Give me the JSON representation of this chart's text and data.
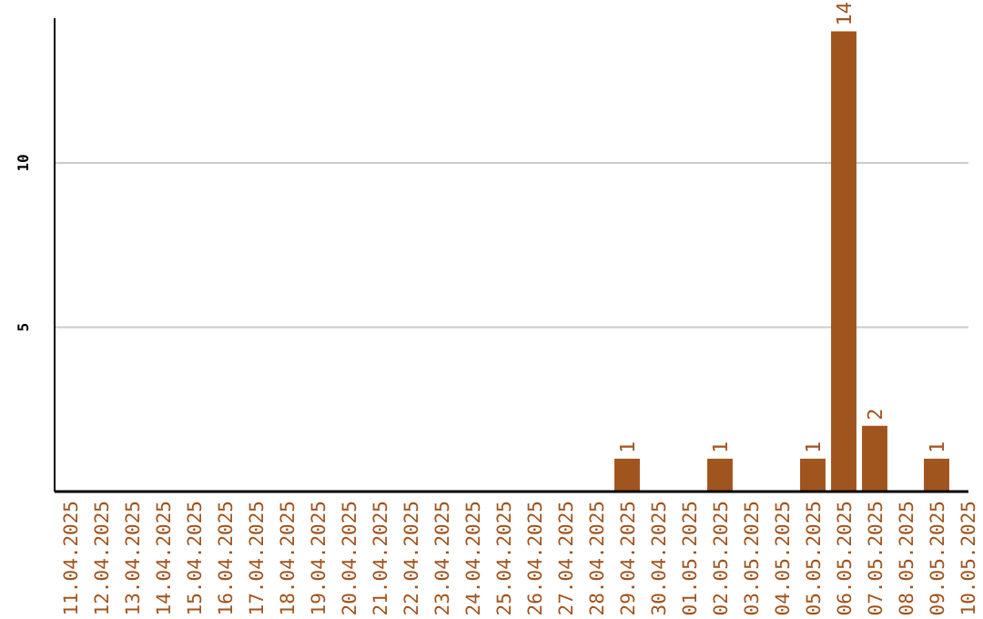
{
  "chart_data": {
    "type": "bar",
    "categories": [
      "11.04.2025",
      "12.04.2025",
      "13.04.2025",
      "14.04.2025",
      "15.04.2025",
      "16.04.2025",
      "17.04.2025",
      "18.04.2025",
      "19.04.2025",
      "20.04.2025",
      "21.04.2025",
      "22.04.2025",
      "23.04.2025",
      "24.04.2025",
      "25.04.2025",
      "26.04.2025",
      "27.04.2025",
      "28.04.2025",
      "29.04.2025",
      "30.04.2025",
      "01.05.2025",
      "02.05.2025",
      "03.05.2025",
      "04.05.2025",
      "05.05.2025",
      "06.05.2025",
      "07.05.2025",
      "08.05.2025",
      "09.05.2025",
      "10.05.2025"
    ],
    "values": [
      0,
      0,
      0,
      0,
      0,
      0,
      0,
      0,
      0,
      0,
      0,
      0,
      0,
      0,
      0,
      0,
      0,
      0,
      1,
      0,
      0,
      1,
      0,
      0,
      1,
      14,
      2,
      0,
      1,
      0
    ],
    "value_labels": [
      null,
      null,
      null,
      null,
      null,
      null,
      null,
      null,
      null,
      null,
      null,
      null,
      null,
      null,
      null,
      null,
      null,
      null,
      "1",
      null,
      null,
      "1",
      null,
      null,
      "1",
      "14",
      "2",
      null,
      "1",
      null
    ],
    "color": "#a0541e",
    "ylim": [
      0,
      14.4
    ],
    "yticks": [
      5,
      10
    ],
    "grid": "y"
  }
}
